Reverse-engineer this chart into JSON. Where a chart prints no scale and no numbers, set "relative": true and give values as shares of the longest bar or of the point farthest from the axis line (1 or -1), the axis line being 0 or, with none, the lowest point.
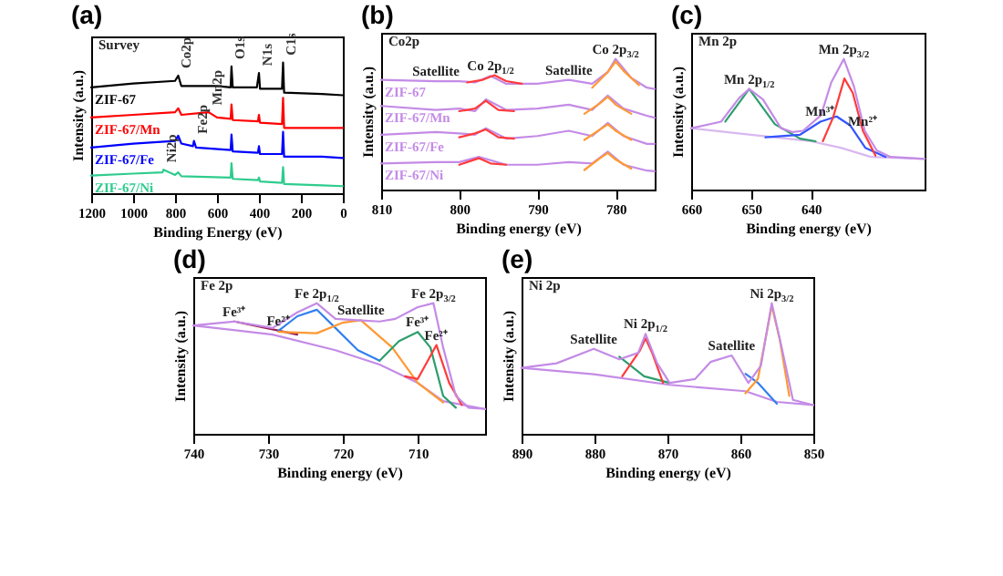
{
  "chart_data": [
    {
      "type": "line",
      "title": "(a)",
      "xlabel": "Binding Energy (eV)",
      "ylabel": "Intensity (a.u.)",
      "relative": true,
      "xlim": [
        1200,
        0
      ],
      "xticks": [
        1200,
        1000,
        800,
        600,
        400,
        200,
        0
      ],
      "series": [
        {
          "name": "ZIF-67",
          "color": "#000000",
          "x": [
            1200,
            1000,
            800,
            785,
            770,
            600,
            535,
            531,
            525,
            410,
            400,
            395,
            290,
            285,
            280,
            100,
            0
          ],
          "values": [
            0.81,
            0.84,
            0.86,
            0.9,
            0.82,
            0.82,
            0.81,
            0.97,
            0.81,
            0.81,
            0.92,
            0.8,
            0.8,
            1.0,
            0.77,
            0.76,
            0.75
          ]
        },
        {
          "name": "ZIF-67/Mn",
          "color": "#ff0000",
          "x": [
            1200,
            1000,
            800,
            785,
            770,
            640,
            600,
            535,
            531,
            525,
            405,
            400,
            395,
            290,
            285,
            280,
            100,
            0
          ],
          "values": [
            0.58,
            0.6,
            0.62,
            0.65,
            0.6,
            0.62,
            0.58,
            0.57,
            0.68,
            0.56,
            0.55,
            0.6,
            0.54,
            0.53,
            0.73,
            0.5,
            0.5,
            0.5
          ]
        },
        {
          "name": "ZIF-67/Fe",
          "color": "#0000ff",
          "x": [
            1200,
            1000,
            800,
            785,
            770,
            715,
            710,
            700,
            535,
            531,
            525,
            405,
            400,
            395,
            290,
            285,
            280,
            100,
            0
          ],
          "values": [
            0.35,
            0.38,
            0.4,
            0.44,
            0.38,
            0.36,
            0.4,
            0.35,
            0.33,
            0.45,
            0.32,
            0.31,
            0.36,
            0.3,
            0.3,
            0.47,
            0.28,
            0.28,
            0.27
          ]
        },
        {
          "name": "ZIF-67/Ni",
          "color": "#2ecc8e",
          "x": [
            1200,
            1000,
            860,
            855,
            800,
            785,
            770,
            535,
            531,
            525,
            405,
            400,
            395,
            290,
            285,
            280,
            100,
            0
          ],
          "values": [
            0.135,
            0.15,
            0.16,
            0.18,
            0.14,
            0.16,
            0.13,
            0.12,
            0.23,
            0.11,
            0.1,
            0.12,
            0.09,
            0.08,
            0.2,
            0.07,
            0.06,
            0.054
          ]
        }
      ],
      "annotations": [
        "Survey",
        {
          "text": "Co2p",
          "x": 785,
          "y": 0.9
        },
        {
          "text": "O1s",
          "x": 531,
          "y": 0.97
        },
        {
          "text": "N1s",
          "x": 400,
          "y": 0.92
        },
        {
          "text": "C1s",
          "x": 285,
          "y": 1.0
        },
        {
          "text": "Mn2p",
          "x": 640,
          "y": 0.62
        },
        {
          "text": "Fe2p",
          "x": 710,
          "y": 0.4
        },
        {
          "text": "Ni2p",
          "x": 855,
          "y": 0.18
        }
      ]
    },
    {
      "type": "line",
      "title": "(b)",
      "xlabel": "Binding energy (eV)",
      "ylabel": "Intensity (a.u.)",
      "relative": true,
      "xlim": [
        810,
        775
      ],
      "xticks": [
        810,
        800,
        790,
        780
      ],
      "series": [
        {
          "name": "ZIF-67",
          "color": "#c48be6",
          "x": [
            810,
            803,
            800,
            798,
            796,
            794,
            790,
            786,
            783,
            781,
            780,
            778,
            776,
            775
          ],
          "values": [
            0.84,
            0.83,
            0.83,
            0.82,
            0.87,
            0.81,
            0.81,
            0.84,
            0.81,
            0.9,
            1.0,
            0.855,
            0.78,
            0.77
          ]
        },
        {
          "name": "ZIF-67/Mn",
          "color": "#c48be6",
          "x": [
            810,
            803,
            800,
            798,
            796.6,
            794,
            790,
            786,
            783,
            781,
            779,
            776,
            775
          ],
          "values": [
            0.64,
            0.61,
            0.62,
            0.6,
            0.69,
            0.61,
            0.62,
            0.65,
            0.61,
            0.72,
            0.62,
            0.565,
            0.55
          ]
        },
        {
          "name": "ZIF-67/Fe",
          "color": "#c48be6",
          "x": [
            810,
            803,
            800,
            798,
            796.6,
            794,
            790,
            786,
            783,
            781,
            779,
            776,
            775
          ],
          "values": [
            0.42,
            0.44,
            0.43,
            0.42,
            0.47,
            0.39,
            0.41,
            0.45,
            0.41,
            0.51,
            0.41,
            0.35,
            0.35
          ]
        },
        {
          "name": "ZIF-67/Ni",
          "color": "#c48be6",
          "x": [
            810,
            803,
            800,
            797.5,
            794,
            790,
            786,
            783,
            781,
            779,
            776,
            775
          ],
          "values": [
            0.2,
            0.21,
            0.21,
            0.25,
            0.19,
            0.19,
            0.21,
            0.2,
            0.29,
            0.19,
            0.145,
            0.14
          ]
        },
        {
          "color": "#ff3b3b",
          "x": [
            799,
            797,
            795.5,
            794,
            792
          ],
          "values": [
            0.82,
            0.84,
            0.875,
            0.83,
            0.81
          ]
        },
        {
          "color": "#ff3b3b",
          "x": [
            800,
            798,
            796.6,
            795,
            793
          ],
          "values": [
            0.6,
            0.62,
            0.68,
            0.61,
            0.6
          ]
        },
        {
          "color": "#ff3b3b",
          "x": [
            800,
            798,
            796.6,
            795,
            793
          ],
          "values": [
            0.4,
            0.43,
            0.46,
            0.4,
            0.39
          ]
        },
        {
          "color": "#ff3b3b",
          "x": [
            800,
            799,
            797.5,
            796,
            794
          ],
          "values": [
            0.19,
            0.21,
            0.24,
            0.2,
            0.19
          ]
        },
        {
          "color": "#ff9933",
          "x": [
            783,
            781,
            780,
            779,
            777
          ],
          "values": [
            0.78,
            0.9,
            0.98,
            0.91,
            0.8
          ]
        },
        {
          "color": "#ff9933",
          "x": [
            784,
            782,
            781,
            780,
            778
          ],
          "values": [
            0.58,
            0.66,
            0.71,
            0.65,
            0.58
          ]
        },
        {
          "color": "#ff9933",
          "x": [
            784,
            782,
            781,
            780,
            778
          ],
          "values": [
            0.38,
            0.46,
            0.5,
            0.45,
            0.38
          ]
        },
        {
          "color": "#ff9933",
          "x": [
            784,
            782,
            781,
            780,
            778
          ],
          "values": [
            0.15,
            0.24,
            0.28,
            0.23,
            0.16
          ]
        }
      ],
      "annotations": [
        "Co2p",
        {
          "text": "Satellite",
          "x": 803,
          "y": 0.83
        },
        {
          "text": "Co 2p$_{1/2}$",
          "x": 796,
          "y": 0.87
        },
        {
          "text": "Satellite",
          "x": 786,
          "y": 0.84
        },
        {
          "text": "Co 2p$_{3/2}$",
          "x": 780,
          "y": 1.0
        }
      ]
    },
    {
      "type": "line",
      "title": "(c)",
      "xlabel": "Binding energy (eV)",
      "ylabel": "Intensity (a.u.)",
      "relative": true,
      "xlim": [
        660,
        621
      ],
      "xticks": [
        660,
        650,
        640
      ],
      "series": [
        {
          "color": "#d9b8f0",
          "x": [
            660,
            650,
            640,
            635,
            630,
            621
          ],
          "values": [
            0.47,
            0.42,
            0.37,
            0.32,
            0.25,
            0.235
          ]
        },
        {
          "color": "#2e9e6e",
          "x": [
            654.3,
            650.3,
            646,
            641.8,
            639.2
          ],
          "values": [
            0.52,
            0.77,
            0.5,
            0.39,
            0.37
          ]
        },
        {
          "color": "#3355ff",
          "x": [
            647.6,
            641.8,
            638.4,
            635.7,
            633.4,
            630.9,
            627.5
          ],
          "values": [
            0.4,
            0.42,
            0.52,
            0.56,
            0.49,
            0.32,
            0.25
          ]
        },
        {
          "color": "#ff3b3b",
          "x": [
            638,
            636.3,
            634.4,
            633,
            631.3,
            629.2
          ],
          "values": [
            0.37,
            0.55,
            0.85,
            0.74,
            0.45,
            0.26
          ]
        },
        {
          "color": "#c48be6",
          "x": [
            660,
            655,
            652,
            650.3,
            648,
            645,
            643,
            641.3,
            638.3,
            636.6,
            634.5,
            632.8,
            631,
            629,
            626.7,
            621
          ],
          "values": [
            0.47,
            0.52,
            0.7,
            0.77,
            0.69,
            0.47,
            0.44,
            0.45,
            0.57,
            0.82,
            1.0,
            0.79,
            0.45,
            0.3,
            0.25,
            0.235
          ]
        }
      ],
      "annotations": [
        "Mn 2p",
        {
          "text": "Mn 2p$_{1/2}$",
          "x": 650.3,
          "y": 0.77
        },
        {
          "text": "Mn³⁺",
          "x": 638.4,
          "y": 0.52
        },
        {
          "text": "Mn²⁺",
          "x": 631.3,
          "y": 0.45
        },
        {
          "text": "Mn 2p$_{3/2}$",
          "x": 634.5,
          "y": 1.0
        }
      ]
    },
    {
      "type": "line",
      "title": "(d)",
      "xlabel": "Binding energy (eV)",
      "ylabel": "Intensity (a.u.)",
      "relative": true,
      "xlim": [
        740,
        701
      ],
      "xticks": [
        740,
        730,
        720,
        710
      ],
      "series": [
        {
          "color": "#c48be6",
          "x": [
            740,
            729.4,
            721,
            715.1,
            710,
            706.6,
            701
          ],
          "values": [
            0.83,
            0.76,
            0.64,
            0.53,
            0.39,
            0.25,
            0.19
          ]
        },
        {
          "color": "#9b2257",
          "x": [
            734.5,
            729.4,
            726.1
          ],
          "values": [
            0.86,
            0.8,
            0.76
          ]
        },
        {
          "color": "#3380ee",
          "x": [
            728.6,
            726.1,
            723.5,
            721,
            718,
            715.1
          ],
          "values": [
            0.79,
            0.9,
            0.95,
            0.81,
            0.64,
            0.56
          ]
        },
        {
          "color": "#ff9933",
          "x": [
            728.6,
            723.5,
            720.1,
            717.6,
            713.4,
            710,
            706.6
          ],
          "values": [
            0.78,
            0.77,
            0.85,
            0.87,
            0.66,
            0.39,
            0.24
          ]
        },
        {
          "color": "#2e9e6e",
          "x": [
            715.1,
            712.5,
            710,
            708.3,
            706.6,
            704.9
          ],
          "values": [
            0.56,
            0.71,
            0.78,
            0.66,
            0.29,
            0.2
          ]
        },
        {
          "color": "#ff3b3b",
          "x": [
            711.7,
            710,
            707.5,
            705.8,
            704.1
          ],
          "values": [
            0.44,
            0.42,
            0.68,
            0.39,
            0.22
          ]
        },
        {
          "color": "#c48be6",
          "x": [
            740,
            734.5,
            729.4,
            726.1,
            723.5,
            721,
            718,
            715.1,
            713,
            710,
            707.9,
            706.6,
            704.9,
            703.2,
            701
          ],
          "values": [
            0.83,
            0.86,
            0.81,
            0.93,
            1.0,
            0.88,
            0.87,
            0.86,
            0.88,
            0.97,
            1.0,
            0.66,
            0.29,
            0.2,
            0.19
          ]
        }
      ],
      "annotations": [
        "Fe 2p",
        {
          "text": "Fe 2p$_{1/2}$",
          "x": 723.5,
          "y": 1.0
        },
        {
          "text": "Fe 2p$_{3/2}$",
          "x": 707.9,
          "y": 1.0
        },
        {
          "text": "Satellite",
          "x": 717.6,
          "y": 0.87
        },
        {
          "text": "Fe³⁺",
          "x": 734.5,
          "y": 0.86
        },
        {
          "text": "Fe²⁺",
          "x": 728.6,
          "y": 0.79
        },
        {
          "text": "Fe³⁺",
          "x": 710,
          "y": 0.78
        },
        {
          "text": "Fe²⁺",
          "x": 707.5,
          "y": 0.68
        }
      ]
    },
    {
      "type": "line",
      "title": "(e)",
      "xlabel": "Binding energy (eV)",
      "ylabel": "Intensity (a.u.)",
      "relative": true,
      "xlim": [
        890,
        850
      ],
      "xticks": [
        890,
        880,
        870,
        860,
        850
      ],
      "series": [
        {
          "color": "#c48be6",
          "x": [
            890,
            880.1,
            869.7,
            859.3,
            855,
            850
          ],
          "values": [
            0.505,
            0.456,
            0.375,
            0.326,
            0.244,
            0.22
          ]
        },
        {
          "color": "#2e9e6e",
          "x": [
            876.6,
            873.2,
            869.7
          ],
          "values": [
            0.59,
            0.44,
            0.39
          ]
        },
        {
          "color": "#ff3b3b",
          "x": [
            876.2,
            873.8,
            873,
            872.1,
            870.6
          ],
          "values": [
            0.44,
            0.635,
            0.73,
            0.62,
            0.39
          ]
        },
        {
          "color": "#3380ee",
          "x": [
            859.3,
            857.6,
            855
          ],
          "values": [
            0.46,
            0.39,
            0.23
          ]
        },
        {
          "color": "#ff9933",
          "x": [
            859.3,
            857.6,
            855.7,
            854.6,
            853.3
          ],
          "values": [
            0.31,
            0.42,
            0.98,
            0.72,
            0.29
          ]
        },
        {
          "color": "#c48be6",
          "x": [
            890,
            885.2,
            880.1,
            876.6,
            874,
            873,
            871.4,
            869.7,
            866.2,
            864.1,
            861.2,
            858.9,
            857.2,
            855.7,
            854.3,
            852.8,
            850
          ],
          "values": [
            0.505,
            0.54,
            0.65,
            0.57,
            0.62,
            0.765,
            0.54,
            0.39,
            0.42,
            0.55,
            0.6,
            0.39,
            0.52,
            1.0,
            0.65,
            0.26,
            0.22
          ]
        }
      ],
      "annotations": [
        "Ni 2p",
        {
          "text": "Satellite",
          "x": 880.1,
          "y": 0.65
        },
        {
          "text": "Ni 2p$_{1/2}$",
          "x": 873,
          "y": 0.765
        },
        {
          "text": "Satellite",
          "x": 861.2,
          "y": 0.6
        },
        {
          "text": "Ni 2p$_{3/2}$",
          "x": 855.7,
          "y": 1.0
        }
      ]
    }
  ]
}
